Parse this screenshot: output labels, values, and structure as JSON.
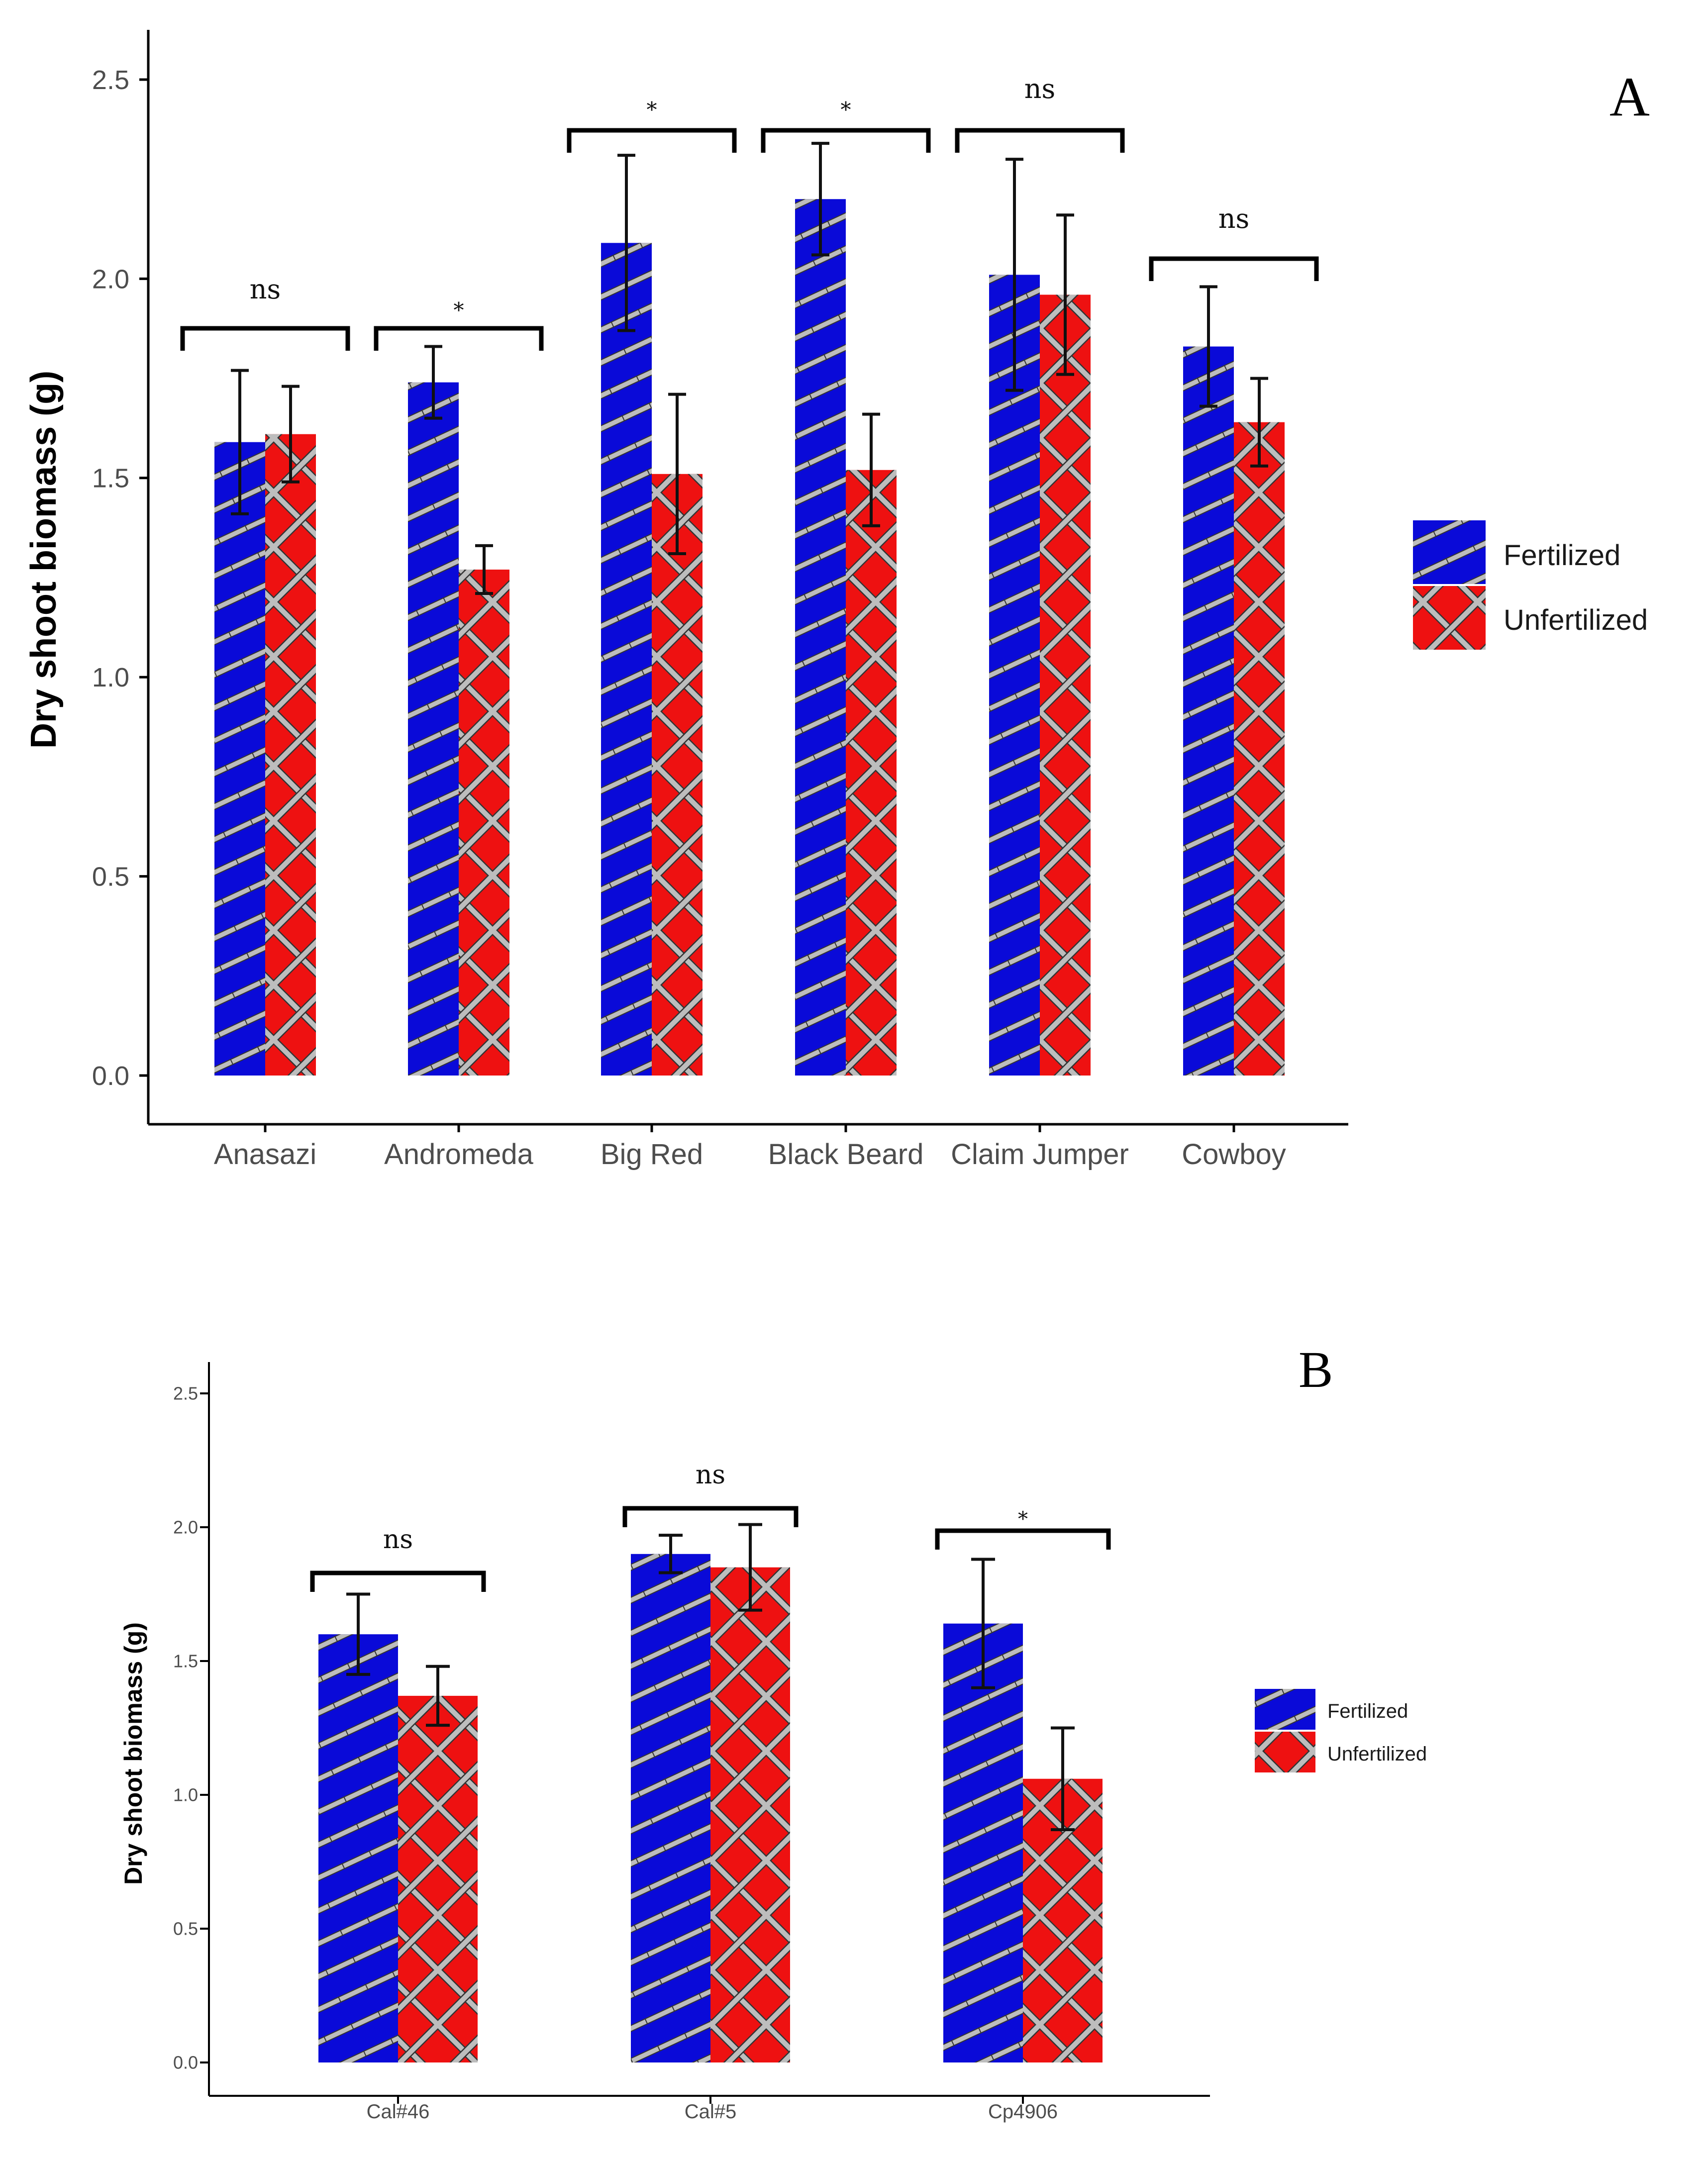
{
  "colors": {
    "fertilized": "#0a0ad8",
    "unfertilized": "#ee1111",
    "stripe": "#bdbdbd",
    "stripe_edge": "#333333",
    "axis": "#000000",
    "error_bar": "#111111"
  },
  "legend": {
    "fertilized_label": "Fertilized",
    "unfertilized_label": "Unfertilized"
  },
  "chart_data": [
    {
      "panel": "A",
      "type": "bar",
      "title": "",
      "ylabel": "Dry shoot biomass (g)",
      "xlabel": "",
      "ylim": [
        0,
        2.6
      ],
      "yticks": [
        "0.0",
        "0.5",
        "1.0",
        "1.5",
        "2.0",
        "2.5"
      ],
      "grid": false,
      "legend_position": "right",
      "categories": [
        "Anasazi",
        "Andromeda",
        "Big Red",
        "Black Beard",
        "Claim Jumper",
        "Cowboy"
      ],
      "series": [
        {
          "name": "Fertilized",
          "values": [
            1.59,
            1.74,
            2.09,
            2.2,
            2.01,
            1.83
          ],
          "errors": [
            0.18,
            0.09,
            0.22,
            0.14,
            0.29,
            0.15
          ]
        },
        {
          "name": "Unfertilized",
          "values": [
            1.61,
            1.27,
            1.51,
            1.52,
            1.96,
            1.64
          ],
          "errors": [
            0.12,
            0.06,
            0.2,
            0.14,
            0.2,
            0.11
          ]
        }
      ],
      "significance": [
        "ns",
        "*",
        "*",
        "*",
        "ns",
        "ns"
      ]
    },
    {
      "panel": "B",
      "type": "bar",
      "title": "",
      "ylabel": "Dry shoot biomass (g)",
      "xlabel": "",
      "ylim": [
        0,
        2.6
      ],
      "yticks": [
        "0.0",
        "0.5",
        "1.0",
        "1.5",
        "2.0",
        "2.5"
      ],
      "grid": false,
      "legend_position": "right",
      "categories": [
        "Cal#46",
        "Cal#5",
        "Cp4906"
      ],
      "series": [
        {
          "name": "Fertilized",
          "values": [
            1.6,
            1.9,
            1.64
          ],
          "errors": [
            0.15,
            0.07,
            0.24
          ]
        },
        {
          "name": "Unfertilized",
          "values": [
            1.37,
            1.85,
            1.06
          ],
          "errors": [
            0.11,
            0.16,
            0.19
          ]
        }
      ],
      "significance": [
        "ns",
        "ns",
        "*"
      ]
    }
  ]
}
